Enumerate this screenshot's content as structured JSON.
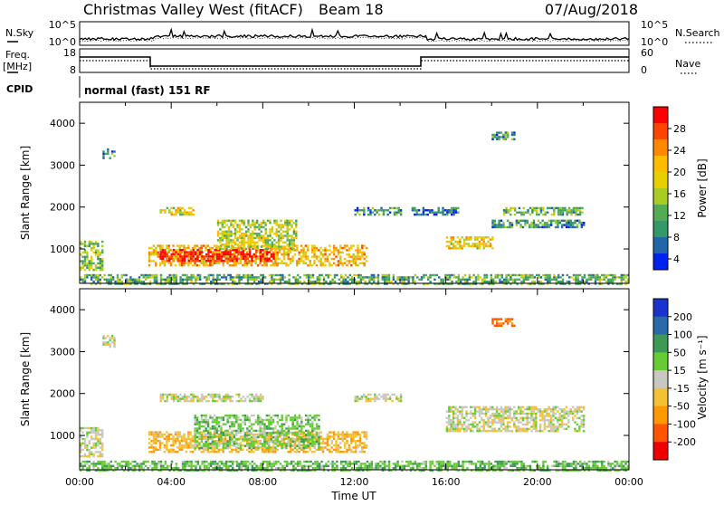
{
  "header": {
    "station": "Christmas Valley West (fitACF)",
    "beam": "Beam 18",
    "date": "07/Aug/2018"
  },
  "top_panels": {
    "nsky_label": "N.Sky",
    "nsky_ticks": [
      "10^5",
      "10^0"
    ],
    "nsearch_label": "N.Search",
    "nsearch_ticks": [
      "10^5",
      "10^0"
    ],
    "freq_label_1": "Freq.",
    "freq_label_2": "[MHz]",
    "freq_ticks": [
      "18",
      "8"
    ],
    "nave_label": "Nave",
    "nave_ticks": [
      "60",
      "0"
    ],
    "cpid_label": "CPID",
    "cpid_value": "normal (fast) 151 RF"
  },
  "chart_data": [
    {
      "type": "heatmap",
      "name": "power",
      "ylabel": "Slant Range [km]",
      "yticks": [
        "4000",
        "3000",
        "2000",
        "1000"
      ],
      "ylim": [
        180,
        4500
      ],
      "xlim": [
        0,
        24
      ],
      "colorbar_label": "Power [dB]",
      "colorbar_ticks": [
        "28",
        "24",
        "20",
        "16",
        "12",
        "8",
        "4"
      ],
      "colorbar_colors": [
        "#ff0000",
        "#ff4400",
        "#ff8800",
        "#ffbb00",
        "#e8d000",
        "#aacc22",
        "#55aa55",
        "#339966",
        "#2266aa",
        "#0022ee"
      ],
      "regions": [
        {
          "t0": 0.0,
          "t1": 1.0,
          "r0": 500,
          "r1": 1200,
          "value": 14
        },
        {
          "t0": 1.0,
          "t1": 1.5,
          "r0": 3100,
          "r1": 3400,
          "value": 10
        },
        {
          "t0": 3.0,
          "t1": 12.5,
          "r0": 600,
          "r1": 1100,
          "value": 20
        },
        {
          "t0": 3.5,
          "t1": 8.5,
          "r0": 700,
          "r1": 1000,
          "value": 28
        },
        {
          "t0": 6.0,
          "t1": 9.5,
          "r0": 1000,
          "r1": 1700,
          "value": 16
        },
        {
          "t0": 3.5,
          "t1": 5.0,
          "r0": 1800,
          "r1": 2000,
          "value": 18
        },
        {
          "t0": 12.0,
          "t1": 14.0,
          "r0": 1800,
          "r1": 2000,
          "value": 10
        },
        {
          "t0": 14.5,
          "t1": 16.5,
          "r0": 1800,
          "r1": 2000,
          "value": 8
        },
        {
          "t0": 16.0,
          "t1": 18.0,
          "r0": 1000,
          "r1": 1300,
          "value": 18
        },
        {
          "t0": 18.0,
          "t1": 22.0,
          "r0": 1500,
          "r1": 1700,
          "value": 10
        },
        {
          "t0": 18.5,
          "t1": 22.0,
          "r0": 1800,
          "r1": 2000,
          "value": 12
        },
        {
          "t0": 18.0,
          "t1": 19.0,
          "r0": 3600,
          "r1": 3800,
          "value": 10
        },
        {
          "t0": 0.0,
          "t1": 24.0,
          "r0": 180,
          "r1": 400,
          "value": 12
        }
      ]
    },
    {
      "type": "heatmap",
      "name": "velocity",
      "ylabel": "Slant Range [km]",
      "yticks": [
        "4000",
        "3000",
        "2000",
        "1000"
      ],
      "ylim": [
        180,
        4500
      ],
      "xlim": [
        0,
        24
      ],
      "xlabel": "Time UT",
      "xticks": [
        "00:00",
        "04:00",
        "08:00",
        "12:00",
        "16:00",
        "20:00",
        "00:00"
      ],
      "colorbar_label": "Velocity [m s⁻¹]",
      "colorbar_ticks": [
        "200",
        "100",
        "50",
        "15",
        "-15",
        "-50",
        "-100",
        "-200"
      ],
      "colorbar_colors": [
        "#1a33cc",
        "#2a6aaa",
        "#3c9a55",
        "#66cc33",
        "#c8c8c0",
        "#f5c033",
        "#ff9900",
        "#ff5500",
        "#ee0000"
      ],
      "regions": [
        {
          "t0": 0.0,
          "t1": 1.0,
          "r0": 500,
          "r1": 1200,
          "value": 0
        },
        {
          "t0": 1.0,
          "t1": 1.5,
          "r0": 3100,
          "r1": 3400,
          "value": 0
        },
        {
          "t0": 3.0,
          "t1": 12.5,
          "r0": 600,
          "r1": 1100,
          "value": -40
        },
        {
          "t0": 5.0,
          "t1": 10.5,
          "r0": 700,
          "r1": 1500,
          "value": 30
        },
        {
          "t0": 3.5,
          "t1": 8.0,
          "r0": 1800,
          "r1": 2000,
          "value": 0
        },
        {
          "t0": 12.0,
          "t1": 14.0,
          "r0": 1800,
          "r1": 2000,
          "value": 0
        },
        {
          "t0": 16.0,
          "t1": 22.0,
          "r0": 1100,
          "r1": 1700,
          "value": 0
        },
        {
          "t0": 18.0,
          "t1": 19.0,
          "r0": 3600,
          "r1": 3800,
          "value": -120
        },
        {
          "t0": 0.0,
          "t1": 24.0,
          "r0": 180,
          "r1": 400,
          "value": 40
        }
      ]
    }
  ]
}
